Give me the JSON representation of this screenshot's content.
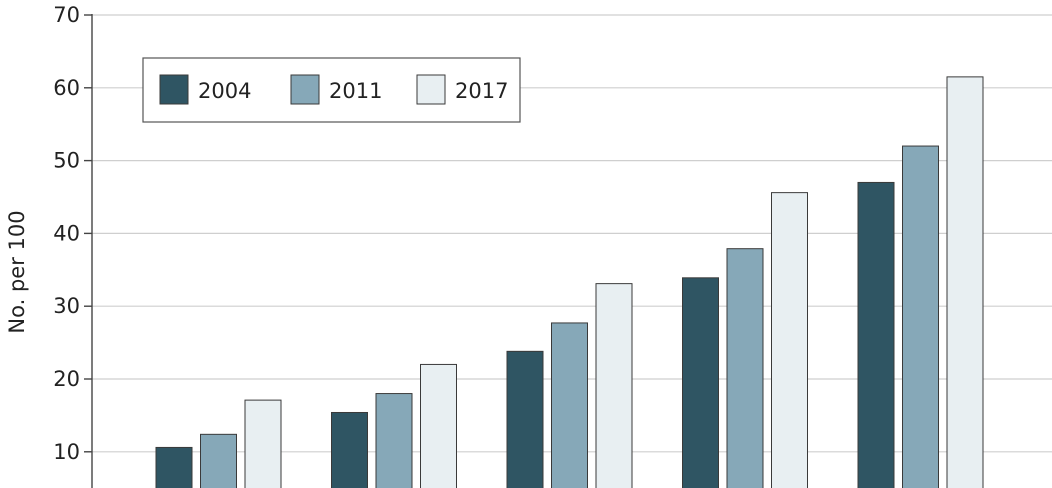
{
  "chart_data": {
    "type": "bar",
    "ylabel": "No. per 100",
    "ylim": [
      0,
      70
    ],
    "yticks": [
      10,
      20,
      30,
      40,
      50,
      60,
      70
    ],
    "grid": true,
    "legend_position": "top-left",
    "categories": [
      "",
      "",
      "",
      "",
      ""
    ],
    "series": [
      {
        "name": "2004",
        "color": "#2f5563",
        "values": [
          10.6,
          15.4,
          23.8,
          33.9,
          47.0
        ]
      },
      {
        "name": "2011",
        "color": "#86a8b8",
        "values": [
          12.4,
          18.0,
          27.7,
          37.9,
          52.0
        ]
      },
      {
        "name": "2017",
        "color": "#e8eff2",
        "values": [
          17.1,
          22.0,
          33.1,
          45.6,
          61.5
        ]
      }
    ]
  }
}
